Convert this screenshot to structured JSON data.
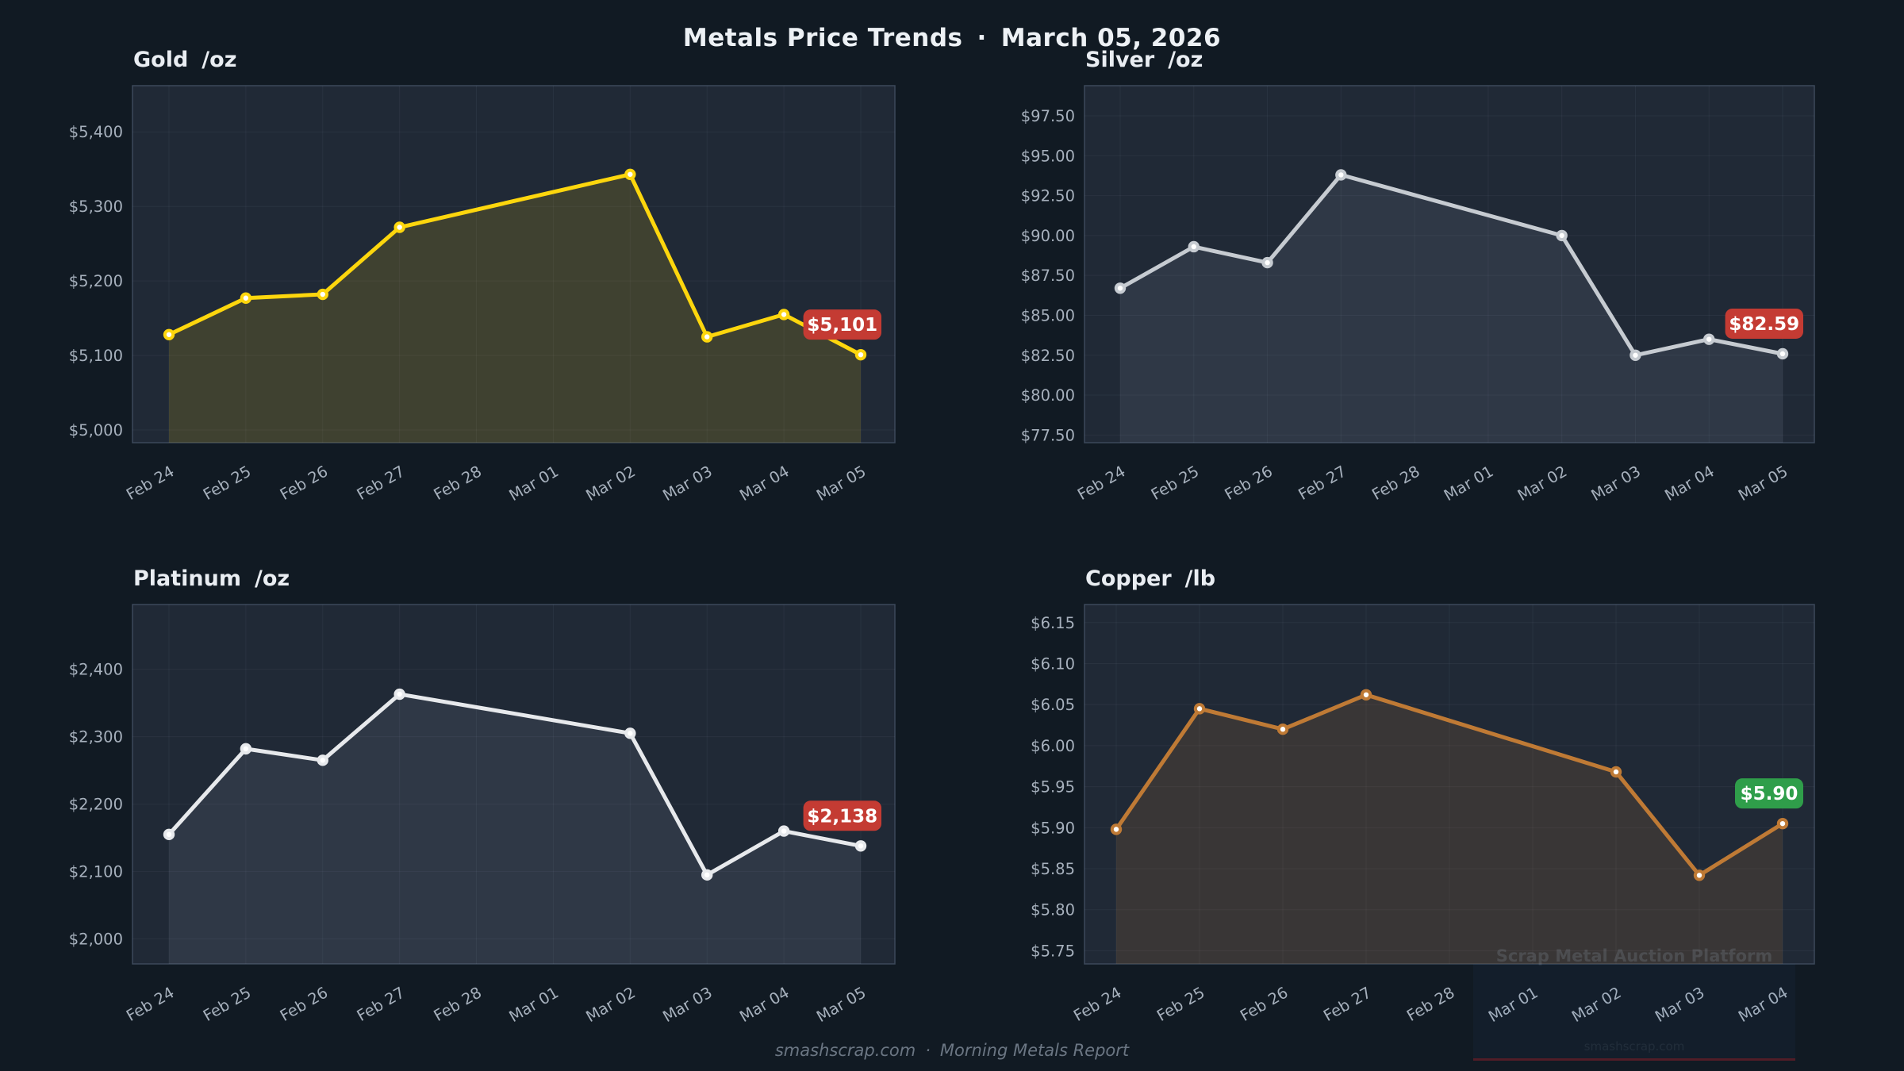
{
  "header": {
    "title": "Metals Price Trends",
    "separator": "·",
    "date": "March 05, 2026"
  },
  "footer": {
    "site": "smashscrap.com",
    "separator": "·",
    "report": "Morning Metals Report"
  },
  "watermark": {
    "line1": "Scrap Metal Auction Platform",
    "line2": "smashscrap.com"
  },
  "colors": {
    "page_bg": "#111a23",
    "plot_bg": "#202936",
    "plot_border": "#3c495a",
    "grid": "rgba(148,168,196,0.08)",
    "tick_text": "#a6b0bc",
    "badge_down": "#c43b33",
    "badge_up": "#2f9e4a",
    "gold_line": "#fdd60d",
    "silver_line": "#c6cbd1",
    "platinum_line": "#e7e9ec",
    "copper_line": "#bf7a35"
  },
  "chart_data": [
    {
      "id": "gold",
      "type": "line",
      "title": "Gold",
      "unit": "/oz",
      "categories": [
        "Feb 24",
        "Feb 25",
        "Feb 26",
        "Feb 27",
        "Feb 28",
        "Mar 01",
        "Mar 02",
        "Mar 03",
        "Mar 04",
        "Mar 05"
      ],
      "values": [
        5128,
        5177,
        5182,
        5272,
        null,
        null,
        5343,
        5125,
        5155,
        5101
      ],
      "ylim": [
        4983,
        5462
      ],
      "y_ticks": [
        {
          "v": 5000,
          "label": "$5,000"
        },
        {
          "v": 5100,
          "label": "$5,100"
        },
        {
          "v": 5200,
          "label": "$5,200"
        },
        {
          "v": 5300,
          "label": "$5,300"
        },
        {
          "v": 5400,
          "label": "$5,400"
        }
      ],
      "grid": true,
      "legend": "none",
      "line_color": "#fdd60d",
      "fill_color": "rgba(253,214,13,0.14)",
      "badge": {
        "text": "$5,101",
        "color": "#c43b33"
      }
    },
    {
      "id": "silver",
      "type": "line",
      "title": "Silver",
      "unit": "/oz",
      "categories": [
        "Feb 24",
        "Feb 25",
        "Feb 26",
        "Feb 27",
        "Feb 28",
        "Mar 01",
        "Mar 02",
        "Mar 03",
        "Mar 04",
        "Mar 05"
      ],
      "values": [
        86.7,
        89.3,
        88.3,
        93.8,
        null,
        null,
        90.0,
        82.5,
        83.5,
        82.59
      ],
      "ylim": [
        77.02,
        99.39
      ],
      "y_ticks": [
        {
          "v": 77.5,
          "label": "$77.50"
        },
        {
          "v": 80.0,
          "label": "$80.00"
        },
        {
          "v": 82.5,
          "label": "$82.50"
        },
        {
          "v": 85.0,
          "label": "$85.00"
        },
        {
          "v": 87.5,
          "label": "$87.50"
        },
        {
          "v": 90.0,
          "label": "$90.00"
        },
        {
          "v": 92.5,
          "label": "$92.50"
        },
        {
          "v": 95.0,
          "label": "$95.00"
        },
        {
          "v": 97.5,
          "label": "$97.50"
        }
      ],
      "grid": true,
      "legend": "none",
      "line_color": "#c6cbd1",
      "fill_color": "rgba(198,213,228,0.09)",
      "badge": {
        "text": "$82.59",
        "color": "#c43b33"
      }
    },
    {
      "id": "platinum",
      "type": "line",
      "title": "Platinum",
      "unit": "/oz",
      "categories": [
        "Feb 24",
        "Feb 25",
        "Feb 26",
        "Feb 27",
        "Feb 28",
        "Mar 01",
        "Mar 02",
        "Mar 03",
        "Mar 04",
        "Mar 05"
      ],
      "values": [
        2155,
        2282,
        2265,
        2363,
        null,
        null,
        2305,
        2095,
        2160,
        2138
      ],
      "ylim": [
        1963,
        2496
      ],
      "y_ticks": [
        {
          "v": 2000,
          "label": "$2,000"
        },
        {
          "v": 2100,
          "label": "$2,100"
        },
        {
          "v": 2200,
          "label": "$2,200"
        },
        {
          "v": 2300,
          "label": "$2,300"
        },
        {
          "v": 2400,
          "label": "$2,400"
        }
      ],
      "grid": true,
      "legend": "none",
      "line_color": "#e7e9ec",
      "fill_color": "rgba(198,213,228,0.09)",
      "badge": {
        "text": "$2,138",
        "color": "#c43b33"
      }
    },
    {
      "id": "copper",
      "type": "line",
      "title": "Copper",
      "unit": "/lb",
      "categories": [
        "Feb 24",
        "Feb 25",
        "Feb 26",
        "Feb 27",
        "Feb 28",
        "Mar 01",
        "Mar 02",
        "Mar 03",
        "Mar 04"
      ],
      "values": [
        5.898,
        6.045,
        6.02,
        6.062,
        null,
        null,
        5.968,
        5.842,
        5.905
      ],
      "ylim": [
        5.734,
        6.172
      ],
      "y_ticks": [
        {
          "v": 5.75,
          "label": "$5.75"
        },
        {
          "v": 5.8,
          "label": "$5.80"
        },
        {
          "v": 5.85,
          "label": "$5.85"
        },
        {
          "v": 5.9,
          "label": "$5.90"
        },
        {
          "v": 5.95,
          "label": "$5.95"
        },
        {
          "v": 6.0,
          "label": "$6.00"
        },
        {
          "v": 6.05,
          "label": "$6.05"
        },
        {
          "v": 6.1,
          "label": "$6.10"
        },
        {
          "v": 6.15,
          "label": "$6.15"
        }
      ],
      "grid": true,
      "legend": "none",
      "line_color": "#bf7a35",
      "fill_color": "rgba(191,122,53,0.16)",
      "badge": {
        "text": "$5.90",
        "color": "#2f9e4a"
      }
    }
  ]
}
